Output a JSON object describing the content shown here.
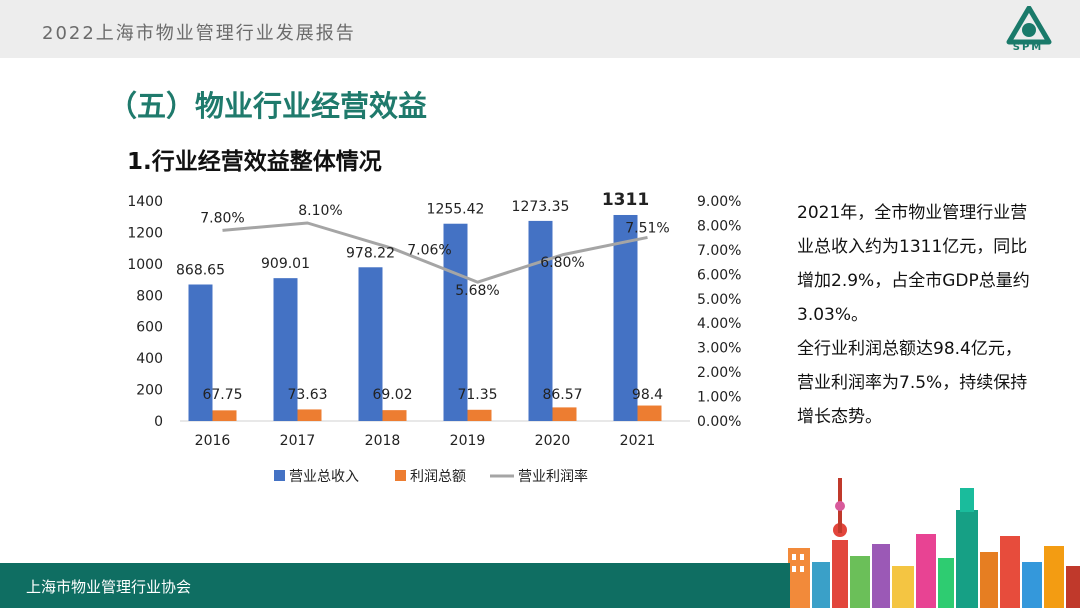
{
  "header": {
    "report_title": "2022上海市物业管理行业发展报告",
    "logo_text": "SPM"
  },
  "section_title": "（五）物业行业经营效益",
  "sub_title": "1.行业经营效益整体情况",
  "chart_data": {
    "type": "bar",
    "categories": [
      "2016",
      "2017",
      "2018",
      "2019",
      "2020",
      "2021"
    ],
    "series": [
      {
        "name": "营业总收入",
        "type": "bar",
        "axis": "left",
        "color": "#4472c4",
        "values": [
          868.65,
          909.01,
          978.22,
          1255.42,
          1273.35,
          1311
        ],
        "labels": [
          "868.65",
          "909.01",
          "978.22",
          "1255.42",
          "1273.35",
          "1311"
        ]
      },
      {
        "name": "利润总额",
        "type": "bar",
        "axis": "left",
        "color": "#ed7d31",
        "values": [
          67.75,
          73.63,
          69.02,
          71.35,
          86.57,
          98.4
        ],
        "labels": [
          "67.75",
          "73.63",
          "69.02",
          "71.35",
          "86.57",
          "98.4"
        ]
      },
      {
        "name": "营业利润率",
        "type": "line",
        "axis": "right",
        "color": "#a5a5a5",
        "values": [
          7.8,
          8.1,
          7.06,
          5.68,
          6.8,
          7.51
        ],
        "labels": [
          "7.80%",
          "8.10%",
          "7.06%",
          "5.68%",
          "6.80%",
          "7.51%"
        ]
      }
    ],
    "y_left": {
      "ylim": [
        0,
        1400
      ],
      "ticks": [
        "0",
        "200",
        "400",
        "600",
        "800",
        "1000",
        "1200",
        "1400"
      ]
    },
    "y_right": {
      "ylim": [
        0,
        9
      ],
      "ticks": [
        "0.00%",
        "1.00%",
        "2.00%",
        "3.00%",
        "4.00%",
        "5.00%",
        "6.00%",
        "7.00%",
        "8.00%",
        "9.00%"
      ]
    },
    "legend_position": "bottom",
    "grid": false
  },
  "side_text": {
    "para1": "2021年，全市物业管理行业营业总收入约为1311亿元，同比增加2.9%，占全市GDP总量约3.03%。",
    "para2": "全行业利润总额达98.4亿元，营业利润率为7.5%，持续保持增长态势。"
  },
  "footer": {
    "org_name": "上海市物业管理行业协会"
  }
}
